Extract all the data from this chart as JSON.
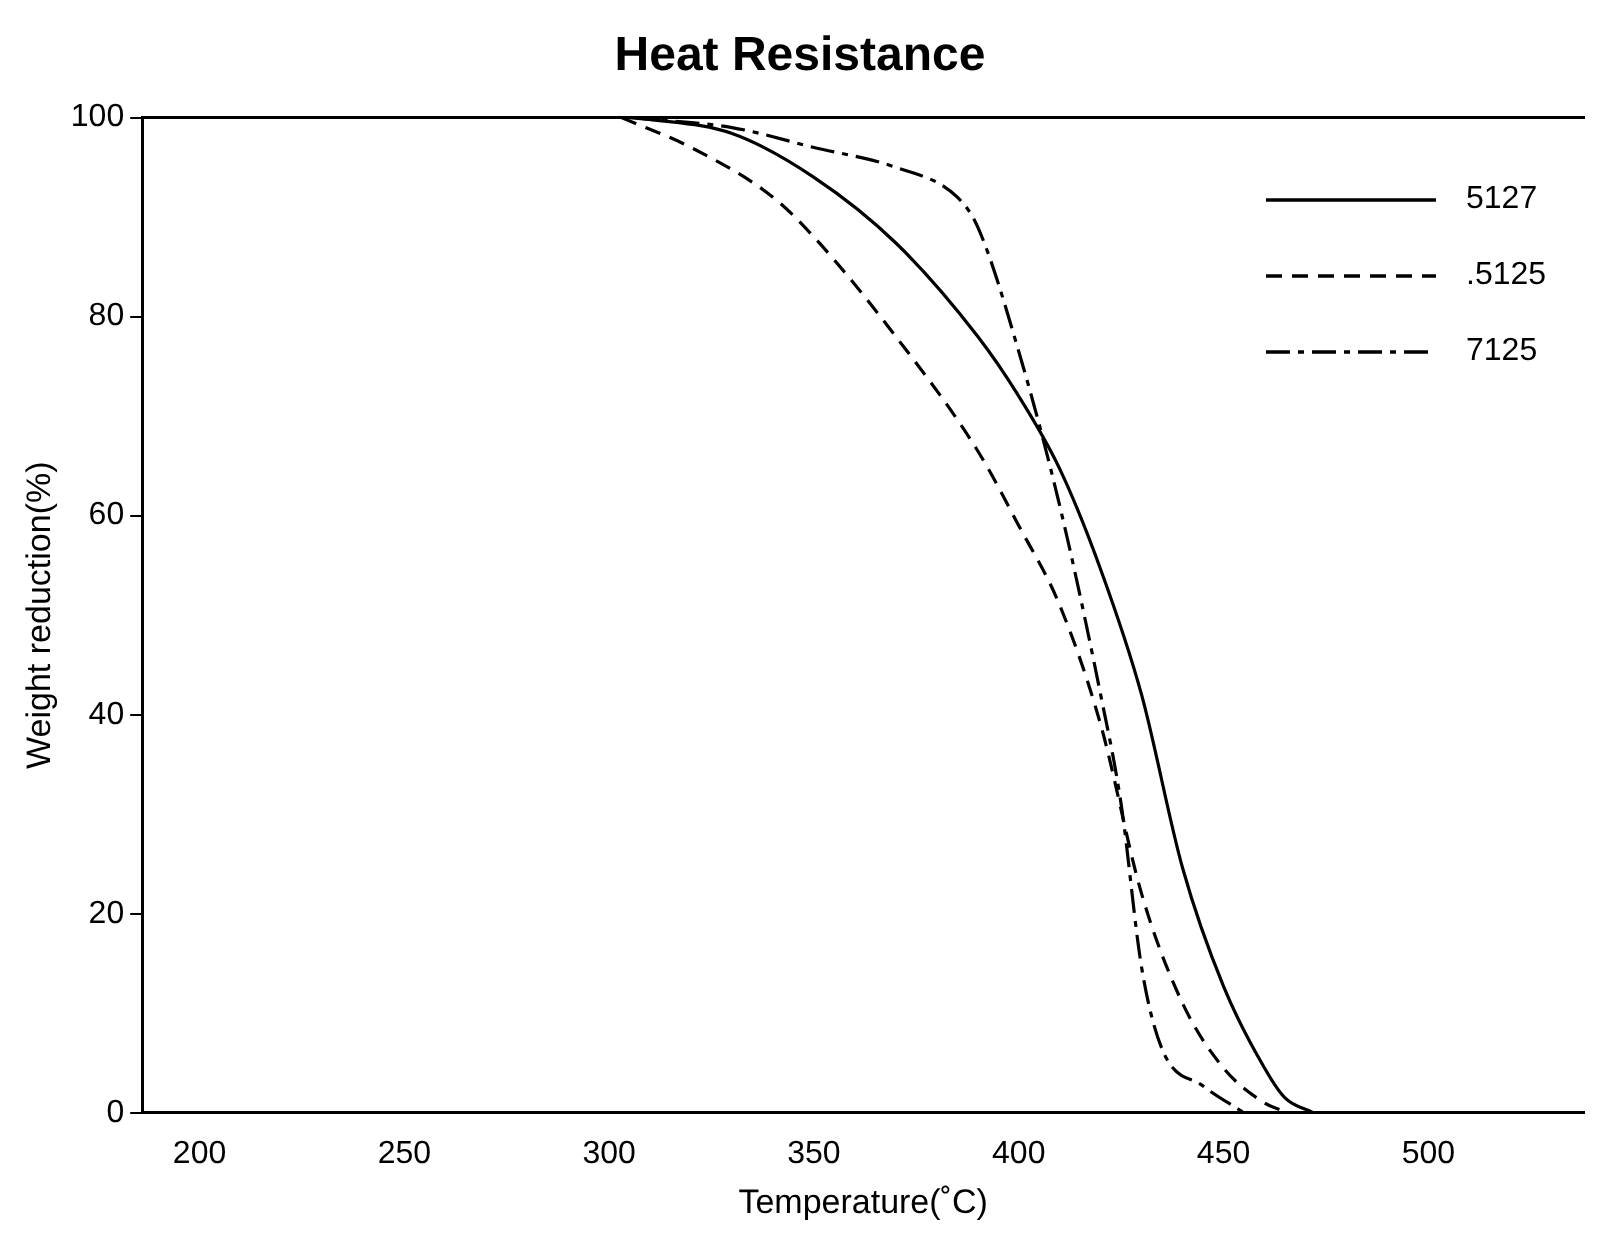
{
  "chart_data": {
    "type": "line",
    "title": "Heat Resistance",
    "xlabel": "Temperature(˚C)",
    "ylabel": "Weight reduction(%)",
    "xlim": [
      186,
      538
    ],
    "ylim": [
      0,
      100
    ],
    "xticks": [
      200,
      250,
      300,
      350,
      400,
      450,
      500
    ],
    "yticks": [
      0,
      20,
      40,
      60,
      80,
      100
    ],
    "grid": false,
    "legend": "top right",
    "marker": "none",
    "series": [
      {
        "name": "5127",
        "color": "#000000",
        "line_style": "solid",
        "x": [
          307,
          330,
          350,
          370,
          390,
          400,
          410,
          420,
          430,
          440,
          450,
          460,
          465,
          472
        ],
        "values": [
          100,
          98.4,
          94,
          87.4,
          78,
          72,
          64.7,
          54.6,
          42,
          24.6,
          12.7,
          4.5,
          1.5,
          0
        ]
      },
      {
        "name": ".5125",
        "color": "#000000",
        "line_style": "dashed",
        "x": [
          303,
          320,
          340,
          350,
          370,
          390,
          400,
          410,
          420,
          430,
          440,
          450,
          460,
          466
        ],
        "values": [
          100,
          97,
          92,
          88,
          78,
          66.5,
          59,
          51,
          39,
          22,
          11,
          4.5,
          1,
          0
        ]
      },
      {
        "name": "7125",
        "color": "#000000",
        "line_style": "dashdot",
        "x": [
          305,
          330,
          350,
          370,
          385,
          390,
          400,
          410,
          420,
          425,
          430,
          435,
          445,
          455
        ],
        "values": [
          100,
          99,
          97,
          95,
          92,
          89,
          76.5,
          61,
          42,
          31,
          14.6,
          6.4,
          2.7,
          0
        ]
      }
    ]
  }
}
